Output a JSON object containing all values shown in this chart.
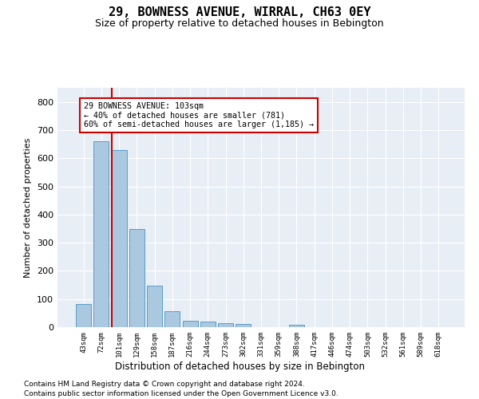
{
  "title": "29, BOWNESS AVENUE, WIRRAL, CH63 0EY",
  "subtitle": "Size of property relative to detached houses in Bebington",
  "xlabel": "Distribution of detached houses by size in Bebington",
  "ylabel": "Number of detached properties",
  "bar_labels": [
    "43sqm",
    "72sqm",
    "101sqm",
    "129sqm",
    "158sqm",
    "187sqm",
    "216sqm",
    "244sqm",
    "273sqm",
    "302sqm",
    "331sqm",
    "359sqm",
    "388sqm",
    "417sqm",
    "446sqm",
    "474sqm",
    "503sqm",
    "532sqm",
    "561sqm",
    "589sqm",
    "618sqm"
  ],
  "bar_values": [
    83,
    660,
    628,
    348,
    148,
    57,
    22,
    20,
    15,
    10,
    0,
    0,
    8,
    0,
    0,
    0,
    0,
    0,
    0,
    0,
    0
  ],
  "bar_color": "#aac8e0",
  "bar_edge_color": "#5a9ec8",
  "highlight_line_index": 2,
  "highlight_line_color": "#cc0000",
  "annotation_line1": "29 BOWNESS AVENUE: 103sqm",
  "annotation_line2": "← 40% of detached houses are smaller (781)",
  "annotation_line3": "60% of semi-detached houses are larger (1,185) →",
  "annotation_box_color": "#cc0000",
  "ylim": [
    0,
    850
  ],
  "yticks": [
    0,
    100,
    200,
    300,
    400,
    500,
    600,
    700,
    800
  ],
  "background_color": "#e8eef5",
  "grid_color": "#ffffff",
  "title_fontsize": 11,
  "subtitle_fontsize": 9,
  "footer_line1": "Contains HM Land Registry data © Crown copyright and database right 2024.",
  "footer_line2": "Contains public sector information licensed under the Open Government Licence v3.0."
}
